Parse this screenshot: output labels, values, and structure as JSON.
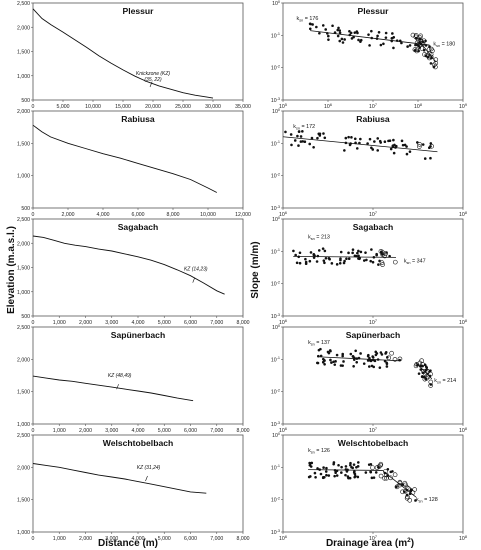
{
  "left_ylabel": "Elevation (m.a.s.l.)",
  "right_ylabel": "Slope (m/m)",
  "left_xlabel": "Distance (m)",
  "right_xlabel_main": "Drainage area (m",
  "right_xlabel_sup": "2",
  "right_xlabel_end": ")",
  "colors": {
    "line": "#111111",
    "marker": "#111111",
    "axis": "#555555"
  },
  "chart_data": [
    {
      "type": "line",
      "title": "Plessur",
      "xlim": [
        0,
        35000
      ],
      "ylim": [
        500,
        2500
      ],
      "xticks": [
        "0",
        "5,000",
        "10,000",
        "15,000",
        "20,000",
        "25,000",
        "30,000",
        "35,000"
      ],
      "yticks": [
        "500",
        "1,000",
        "1,500",
        "2,000",
        "2,500"
      ],
      "x": [
        0,
        1500,
        3000,
        5000,
        7000,
        9000,
        11000,
        13000,
        15000,
        17000,
        19000,
        21000,
        23000,
        25000,
        27000,
        29000,
        30000
      ],
      "y": [
        2380,
        2180,
        2050,
        1900,
        1740,
        1580,
        1410,
        1260,
        1120,
        990,
        880,
        790,
        720,
        650,
        600,
        560,
        540
      ],
      "annotation": {
        "line1": "Knickzone (KZ)",
        "line2": "(35, 22)",
        "x": 20000,
        "y": 850
      }
    },
    {
      "type": "scatter",
      "title": "Plessur",
      "scale": "log-log",
      "xlim": [
        100000,
        1000000000
      ],
      "ylim": [
        0.001,
        1
      ],
      "xticks": [
        "10^5",
        "10^6",
        "10^7",
        "10^8",
        "10^9"
      ],
      "yticks": [
        "10^-3",
        "10^-2",
        "10^-1",
        "10^0"
      ],
      "labels": [
        {
          "text": "k_sn = 176",
          "x": 200000,
          "y": 0.3
        },
        {
          "text": "k_sn = 180",
          "x": 220000000,
          "y": 0.048
        }
      ],
      "fit": [
        {
          "x": [
            400000,
            180000000
          ],
          "y": [
            0.14,
            0.05
          ]
        },
        {
          "x": [
            90000000,
            250000000
          ],
          "y": [
            0.09,
            0.015
          ]
        }
      ]
    },
    {
      "type": "line",
      "title": "Rabiusa",
      "xlim": [
        0,
        12000
      ],
      "ylim": [
        500,
        2000
      ],
      "xticks": [
        "0",
        "2,000",
        "4,000",
        "6,000",
        "8,000",
        "10,000",
        "12,000"
      ],
      "yticks": [
        "500",
        "1,000",
        "1,500",
        "2,000"
      ],
      "x": [
        0,
        500,
        1000,
        2000,
        3000,
        4000,
        5000,
        6000,
        7000,
        8000,
        9000,
        10000,
        10500
      ],
      "y": [
        1780,
        1680,
        1600,
        1500,
        1420,
        1340,
        1270,
        1190,
        1110,
        1030,
        940,
        810,
        740
      ]
    },
    {
      "type": "scatter",
      "title": "Rabiusa",
      "scale": "log-log",
      "xlim": [
        1000000,
        100000000
      ],
      "ylim": [
        0.001,
        1
      ],
      "xticks": [
        "10^6",
        "10^7",
        "10^8"
      ],
      "yticks": [
        "10^-3",
        "10^-2",
        "10^-1",
        "10^0"
      ],
      "labels": [
        {
          "text": "k_sn = 172",
          "x": 1300000,
          "y": 0.3
        }
      ],
      "fit": [
        {
          "x": [
            1000000,
            52000000
          ],
          "y": [
            0.16,
            0.055
          ]
        }
      ]
    },
    {
      "type": "line",
      "title": "Sagabach",
      "xlim": [
        0,
        8000
      ],
      "ylim": [
        500,
        2500
      ],
      "xticks": [
        "0",
        "1,000",
        "2,000",
        "3,000",
        "4,000",
        "5,000",
        "6,000",
        "7,000",
        "8,000"
      ],
      "yticks": [
        "500",
        "1,000",
        "1,500",
        "2,000",
        "2,500"
      ],
      "x": [
        0,
        400,
        800,
        1200,
        1600,
        2000,
        2500,
        3000,
        3500,
        4000,
        4500,
        5000,
        5500,
        6000,
        6500,
        7000,
        7300
      ],
      "y": [
        2150,
        2120,
        2060,
        2000,
        1960,
        1930,
        1880,
        1840,
        1780,
        1720,
        1650,
        1560,
        1450,
        1330,
        1180,
        1020,
        950
      ],
      "annotation": {
        "line1": "KZ (14,23)",
        "x": 6200,
        "y": 1270
      }
    },
    {
      "type": "scatter",
      "title": "Sagabach",
      "scale": "log-log",
      "xlim": [
        1000000,
        100000000
      ],
      "ylim": [
        0.001,
        1
      ],
      "xticks": [
        "10^6",
        "10^7",
        "10^8"
      ],
      "yticks": [
        "10^-3",
        "10^-2",
        "10^-1",
        "10^0"
      ],
      "labels": [
        {
          "text": "k_sn = 213",
          "x": 1900000,
          "y": 0.25
        },
        {
          "text": "k_sn = 347",
          "x": 22000000,
          "y": 0.045
        }
      ],
      "fit": [
        {
          "x": [
            1300000,
            18000000
          ],
          "y": [
            0.07,
            0.065
          ]
        }
      ]
    },
    {
      "type": "line",
      "title": "Sapünerbach",
      "xlim": [
        0,
        8000
      ],
      "ylim": [
        1000,
        2500
      ],
      "xticks": [
        "0",
        "1,000",
        "2,000",
        "3,000",
        "4,000",
        "5,000",
        "6,000",
        "7,000",
        "8,000"
      ],
      "yticks": [
        "1,000",
        "1,500",
        "2,000",
        "2,500"
      ],
      "x": [
        0,
        500,
        1000,
        1500,
        2000,
        2500,
        3000,
        3500,
        4000,
        4500,
        5000,
        5500,
        6100
      ],
      "y": [
        1740,
        1710,
        1680,
        1660,
        1630,
        1600,
        1570,
        1540,
        1510,
        1480,
        1440,
        1400,
        1360
      ],
      "annotation": {
        "line1": "KZ (48,49)",
        "x": 3300,
        "y": 1600
      }
    },
    {
      "type": "scatter",
      "title": "Sapünerbach",
      "scale": "log-log",
      "xlim": [
        1000000,
        100000000
      ],
      "ylim": [
        0.001,
        1
      ],
      "xticks": [
        "10^6",
        "10^7",
        "10^8"
      ],
      "yticks": [
        "10^-3",
        "10^-2",
        "10^-1",
        "10^0"
      ],
      "labels": [
        {
          "text": "k_sn = 137",
          "x": 1900000,
          "y": 0.3
        },
        {
          "text": "k_sn = 214",
          "x": 48000000,
          "y": 0.02
        }
      ],
      "fit": [
        {
          "x": [
            2400000,
            20000000
          ],
          "y": [
            0.12,
            0.09
          ]
        },
        {
          "x": [
            30000000,
            45000000
          ],
          "y": [
            0.08,
            0.025
          ]
        }
      ]
    },
    {
      "type": "line",
      "title": "Welschtobelbach",
      "xlim": [
        0,
        8000
      ],
      "ylim": [
        1000,
        2500
      ],
      "xticks": [
        "0",
        "1,000",
        "2,000",
        "3,000",
        "4,000",
        "5,000",
        "6,000",
        "7,000",
        "8,000"
      ],
      "yticks": [
        "1,000",
        "1,500",
        "2,000",
        "2,500"
      ],
      "x": [
        0,
        500,
        1000,
        1500,
        2000,
        2500,
        3000,
        3500,
        4000,
        4500,
        5000,
        5500,
        6000,
        6600
      ],
      "y": [
        2060,
        2030,
        2000,
        1960,
        1920,
        1880,
        1850,
        1820,
        1780,
        1740,
        1700,
        1660,
        1620,
        1600
      ],
      "annotation": {
        "line1": "KZ (31,24)",
        "x": 4400,
        "y": 1850
      }
    },
    {
      "type": "scatter",
      "title": "Welschtobelbach",
      "scale": "log-log",
      "xlim": [
        1000000,
        100000000
      ],
      "ylim": [
        0.001,
        1
      ],
      "xticks": [
        "10^6",
        "10^7",
        "10^8"
      ],
      "yticks": [
        "10^-3",
        "10^-2",
        "10^-1",
        "10^0"
      ],
      "labels": [
        {
          "text": "k_sn = 126",
          "x": 1900000,
          "y": 0.3
        },
        {
          "text": "k_sn = 128",
          "x": 30000000,
          "y": 0.009
        }
      ],
      "fit": [
        {
          "x": [
            1900000,
            13000000
          ],
          "y": [
            0.085,
            0.08
          ]
        },
        {
          "x": [
            13000000,
            30000000
          ],
          "y": [
            0.075,
            0.012
          ]
        }
      ]
    }
  ]
}
